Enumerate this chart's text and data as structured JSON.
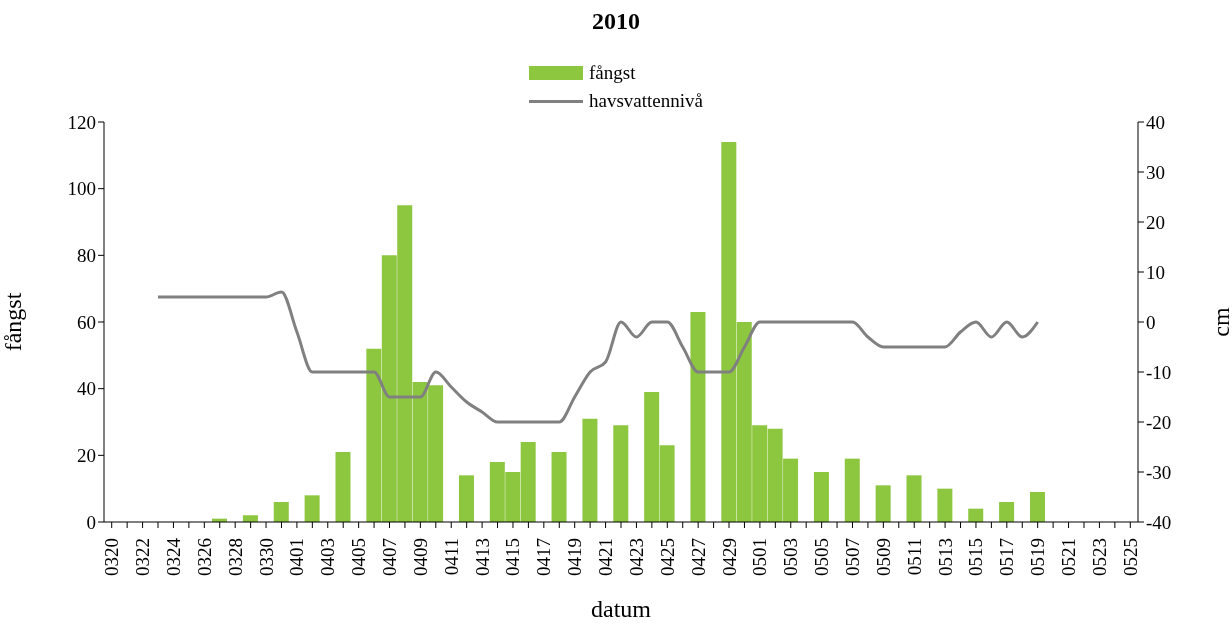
{
  "chart_data": {
    "type": "bar",
    "title": "2010",
    "xlabel": "datum",
    "ylabel": "fångst",
    "y2label": "cm",
    "categories": [
      "0320",
      null,
      "0322",
      null,
      "0324",
      null,
      "0326",
      null,
      "0328",
      null,
      "0330",
      null,
      "0401",
      null,
      "0403",
      null,
      "0405",
      null,
      "0407",
      null,
      "0409",
      null,
      "0411",
      null,
      "0413",
      null,
      "0415",
      null,
      "0417",
      null,
      "0419",
      null,
      "0421",
      null,
      "0423",
      null,
      "0425",
      null,
      "0427",
      null,
      "0429",
      null,
      "0501",
      null,
      "0503",
      null,
      "0505",
      null,
      "0507",
      null,
      "0509",
      null,
      "0511",
      null,
      "0513",
      null,
      "0515",
      null,
      "0517",
      null,
      "0519",
      null,
      "0521",
      null,
      "0523",
      null,
      "0525"
    ],
    "series": [
      {
        "name": "fångst",
        "color": "#8dc63f",
        "values": [
          null,
          null,
          null,
          null,
          null,
          null,
          null,
          1,
          null,
          2,
          null,
          6,
          null,
          8,
          null,
          21,
          null,
          52,
          80,
          95,
          42,
          41,
          null,
          14,
          null,
          18,
          15,
          24,
          null,
          21,
          null,
          31,
          null,
          29,
          null,
          39,
          23,
          null,
          63,
          null,
          114,
          60,
          29,
          28,
          19,
          null,
          15,
          null,
          19,
          null,
          11,
          null,
          14,
          null,
          10,
          null,
          4,
          null,
          6,
          null,
          9,
          null,
          null,
          null,
          null,
          null,
          null
        ]
      },
      {
        "name": "havsvattennivå",
        "type": "line",
        "axis": "y2",
        "color": "#808080",
        "values": [
          null,
          null,
          null,
          5,
          5,
          5,
          5,
          5,
          5,
          5,
          5,
          6,
          -2,
          -10,
          -10,
          -10,
          -10,
          -10,
          -15,
          -15,
          -15,
          -10,
          -13,
          -16,
          -18,
          -20,
          -20,
          -20,
          -20,
          -20,
          -15,
          -10,
          -8,
          0,
          -3,
          0,
          0,
          -5,
          -10,
          -10,
          -10,
          -5,
          0,
          0,
          0,
          0,
          0,
          0,
          0,
          -3,
          -5,
          -5,
          -5,
          -5,
          -5,
          -2,
          0,
          -3,
          0,
          -3,
          0,
          null,
          null,
          null,
          null,
          null,
          null
        ]
      }
    ],
    "ylim": [
      0,
      120
    ],
    "yticks": [
      0,
      20,
      40,
      60,
      80,
      100,
      120
    ],
    "y2lim": [
      -40,
      40
    ],
    "y2ticks": [
      -40,
      -30,
      -20,
      -10,
      0,
      10,
      20,
      30,
      40
    ],
    "grid": false,
    "legend": "top",
    "marker": "none",
    "line_style": "solid"
  }
}
